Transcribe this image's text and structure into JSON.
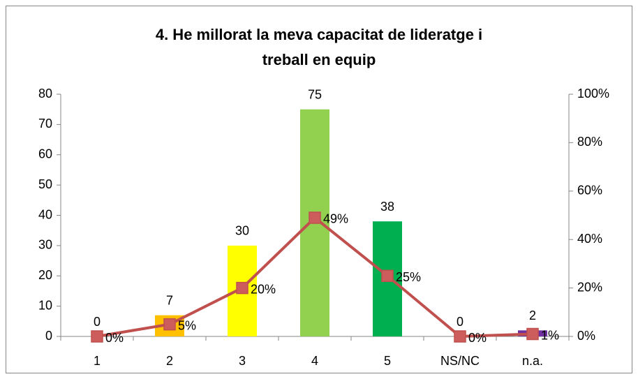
{
  "chart_data": {
    "type": "bar",
    "title": "4. He millorat la meva capacitat de lideratge i treball en equip",
    "categories": [
      "1",
      "2",
      "3",
      "4",
      "5",
      "NS/NC",
      "n.a."
    ],
    "series": [
      {
        "type": "bar",
        "colors": [
          "#4f81bd",
          "#ffc000",
          "#ffff00",
          "#92d050",
          "#00b050",
          "#4f81bd",
          "#7030a0"
        ],
        "values": [
          0,
          7,
          30,
          75,
          38,
          0,
          2
        ]
      },
      {
        "type": "line",
        "axis": "y2",
        "color": "#c0504d",
        "values": [
          0,
          5,
          20,
          49,
          25,
          0,
          1
        ],
        "value_labels": [
          "0%",
          "5%",
          "20%",
          "49%",
          "25%",
          "0%",
          "1%"
        ]
      }
    ],
    "ylim": [
      0,
      80
    ],
    "yticks": [
      0,
      10,
      20,
      30,
      40,
      50,
      60,
      70,
      80
    ],
    "y2lim": [
      0,
      100
    ],
    "y2ticks": [
      {
        "value": 0,
        "label": "0%"
      },
      {
        "value": 20,
        "label": "20%"
      },
      {
        "value": 40,
        "label": "40%"
      },
      {
        "value": 60,
        "label": "60%"
      },
      {
        "value": 80,
        "label": "80%"
      },
      {
        "value": 100,
        "label": "100%"
      }
    ],
    "grid": false
  }
}
